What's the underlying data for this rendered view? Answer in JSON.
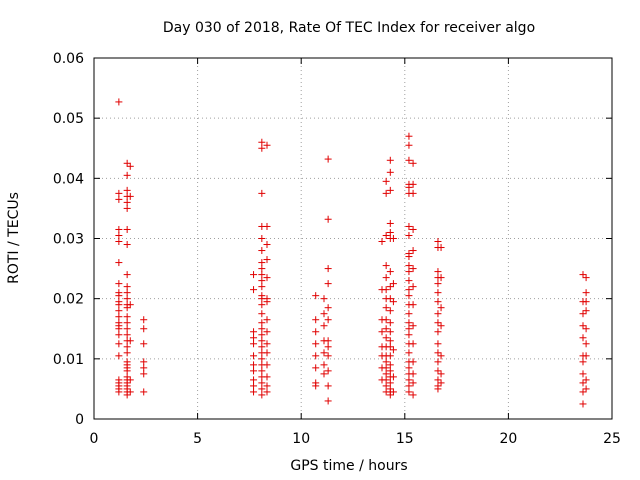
{
  "chart_data": {
    "type": "scatter",
    "title": "Day 030 of 2018, Rate Of TEC Index for receiver algo",
    "xlabel": "GPS time / hours",
    "ylabel": "ROTI / TECUs",
    "xlim": [
      0,
      25
    ],
    "ylim": [
      0,
      0.06
    ],
    "xticks": [
      "0",
      "5",
      "10",
      "15",
      "20",
      "25"
    ],
    "yticks": [
      "0",
      "0.01",
      "0.02",
      "0.03",
      "0.04",
      "0.05",
      "0.06"
    ],
    "grid": true,
    "marker": "plus",
    "color": "#e00000",
    "series": [
      {
        "points": [
          [
            1.2,
            0.0527
          ],
          [
            1.2,
            0.0375
          ],
          [
            1.2,
            0.0365
          ],
          [
            1.2,
            0.0315
          ],
          [
            1.2,
            0.0305
          ],
          [
            1.2,
            0.0295
          ],
          [
            1.2,
            0.026
          ],
          [
            1.2,
            0.0225
          ],
          [
            1.2,
            0.021
          ],
          [
            1.2,
            0.0205
          ],
          [
            1.2,
            0.0195
          ],
          [
            1.2,
            0.019
          ],
          [
            1.2,
            0.018
          ],
          [
            1.2,
            0.017
          ],
          [
            1.2,
            0.016
          ],
          [
            1.2,
            0.0155
          ],
          [
            1.2,
            0.015
          ],
          [
            1.2,
            0.014
          ],
          [
            1.2,
            0.0125
          ],
          [
            1.2,
            0.0105
          ],
          [
            1.2,
            0.0065
          ],
          [
            1.2,
            0.006
          ],
          [
            1.2,
            0.0055
          ],
          [
            1.2,
            0.005
          ],
          [
            1.2,
            0.0045
          ],
          [
            1.6,
            0.0425
          ],
          [
            1.6,
            0.0405
          ],
          [
            1.6,
            0.038
          ],
          [
            1.6,
            0.037
          ],
          [
            1.6,
            0.036
          ],
          [
            1.6,
            0.035
          ],
          [
            1.6,
            0.0315
          ],
          [
            1.6,
            0.029
          ],
          [
            1.6,
            0.024
          ],
          [
            1.6,
            0.022
          ],
          [
            1.6,
            0.021
          ],
          [
            1.6,
            0.02
          ],
          [
            1.6,
            0.019
          ],
          [
            1.6,
            0.0185
          ],
          [
            1.6,
            0.017
          ],
          [
            1.6,
            0.016
          ],
          [
            1.6,
            0.015
          ],
          [
            1.6,
            0.014
          ],
          [
            1.6,
            0.013
          ],
          [
            1.6,
            0.012
          ],
          [
            1.6,
            0.011
          ],
          [
            1.6,
            0.0095
          ],
          [
            1.6,
            0.009
          ],
          [
            1.6,
            0.0085
          ],
          [
            1.6,
            0.008
          ],
          [
            1.6,
            0.007
          ],
          [
            1.6,
            0.0065
          ],
          [
            1.6,
            0.006
          ],
          [
            1.6,
            0.0055
          ],
          [
            1.6,
            0.005
          ],
          [
            1.6,
            0.0045
          ],
          [
            1.6,
            0.004
          ],
          [
            1.75,
            0.042
          ],
          [
            1.75,
            0.037
          ],
          [
            1.75,
            0.019
          ],
          [
            1.75,
            0.013
          ],
          [
            1.75,
            0.0065
          ],
          [
            1.75,
            0.0045
          ],
          [
            2.4,
            0.0165
          ],
          [
            2.4,
            0.015
          ],
          [
            2.4,
            0.0125
          ],
          [
            2.4,
            0.0095
          ],
          [
            2.4,
            0.0085
          ],
          [
            2.4,
            0.0075
          ],
          [
            2.4,
            0.0045
          ],
          [
            7.7,
            0.024
          ],
          [
            7.7,
            0.0215
          ],
          [
            7.7,
            0.0145
          ],
          [
            7.7,
            0.0135
          ],
          [
            7.7,
            0.0125
          ],
          [
            7.7,
            0.0105
          ],
          [
            7.7,
            0.009
          ],
          [
            7.7,
            0.008
          ],
          [
            7.7,
            0.0065
          ],
          [
            7.7,
            0.0055
          ],
          [
            7.7,
            0.0045
          ],
          [
            8.1,
            0.046
          ],
          [
            8.1,
            0.045
          ],
          [
            8.1,
            0.0375
          ],
          [
            8.1,
            0.032
          ],
          [
            8.1,
            0.03
          ],
          [
            8.1,
            0.028
          ],
          [
            8.1,
            0.026
          ],
          [
            8.1,
            0.025
          ],
          [
            8.1,
            0.024
          ],
          [
            8.1,
            0.023
          ],
          [
            8.1,
            0.022
          ],
          [
            8.1,
            0.0205
          ],
          [
            8.1,
            0.02
          ],
          [
            8.1,
            0.019
          ],
          [
            8.1,
            0.0175
          ],
          [
            8.1,
            0.016
          ],
          [
            8.1,
            0.015
          ],
          [
            8.1,
            0.014
          ],
          [
            8.1,
            0.013
          ],
          [
            8.1,
            0.012
          ],
          [
            8.1,
            0.011
          ],
          [
            8.1,
            0.01
          ],
          [
            8.1,
            0.009
          ],
          [
            8.1,
            0.008
          ],
          [
            8.1,
            0.007
          ],
          [
            8.1,
            0.006
          ],
          [
            8.1,
            0.005
          ],
          [
            8.1,
            0.004
          ],
          [
            8.35,
            0.0455
          ],
          [
            8.35,
            0.032
          ],
          [
            8.35,
            0.029
          ],
          [
            8.35,
            0.0265
          ],
          [
            8.35,
            0.0235
          ],
          [
            8.35,
            0.02
          ],
          [
            8.35,
            0.0195
          ],
          [
            8.35,
            0.0165
          ],
          [
            8.35,
            0.0145
          ],
          [
            8.35,
            0.0125
          ],
          [
            8.35,
            0.011
          ],
          [
            8.35,
            0.009
          ],
          [
            8.35,
            0.007
          ],
          [
            8.35,
            0.0055
          ],
          [
            8.35,
            0.0045
          ],
          [
            10.7,
            0.0205
          ],
          [
            10.7,
            0.0165
          ],
          [
            10.7,
            0.0145
          ],
          [
            10.7,
            0.0125
          ],
          [
            10.7,
            0.0105
          ],
          [
            10.7,
            0.0085
          ],
          [
            10.7,
            0.006
          ],
          [
            10.7,
            0.0055
          ],
          [
            11.1,
            0.02
          ],
          [
            11.1,
            0.0175
          ],
          [
            11.1,
            0.0155
          ],
          [
            11.1,
            0.013
          ],
          [
            11.1,
            0.011
          ],
          [
            11.1,
            0.009
          ],
          [
            11.1,
            0.0075
          ],
          [
            11.3,
            0.0432
          ],
          [
            11.3,
            0.0332
          ],
          [
            11.3,
            0.025
          ],
          [
            11.3,
            0.0225
          ],
          [
            11.3,
            0.0185
          ],
          [
            11.3,
            0.0165
          ],
          [
            11.3,
            0.013
          ],
          [
            11.3,
            0.012
          ],
          [
            11.3,
            0.0105
          ],
          [
            11.3,
            0.008
          ],
          [
            11.3,
            0.0055
          ],
          [
            11.3,
            0.003
          ],
          [
            13.9,
            0.0295
          ],
          [
            13.9,
            0.0215
          ],
          [
            13.9,
            0.0165
          ],
          [
            13.9,
            0.0145
          ],
          [
            13.9,
            0.012
          ],
          [
            13.9,
            0.0105
          ],
          [
            13.9,
            0.0085
          ],
          [
            13.9,
            0.0065
          ],
          [
            14.1,
            0.0395
          ],
          [
            14.1,
            0.0375
          ],
          [
            14.1,
            0.0305
          ],
          [
            14.1,
            0.0255
          ],
          [
            14.1,
            0.0235
          ],
          [
            14.1,
            0.0215
          ],
          [
            14.1,
            0.02
          ],
          [
            14.1,
            0.0185
          ],
          [
            14.1,
            0.0165
          ],
          [
            14.1,
            0.015
          ],
          [
            14.1,
            0.0135
          ],
          [
            14.1,
            0.012
          ],
          [
            14.1,
            0.0105
          ],
          [
            14.1,
            0.0095
          ],
          [
            14.1,
            0.0085
          ],
          [
            14.1,
            0.0075
          ],
          [
            14.1,
            0.0065
          ],
          [
            14.1,
            0.0055
          ],
          [
            14.1,
            0.0045
          ],
          [
            14.3,
            0.043
          ],
          [
            14.3,
            0.041
          ],
          [
            14.3,
            0.038
          ],
          [
            14.3,
            0.0325
          ],
          [
            14.3,
            0.031
          ],
          [
            14.3,
            0.03
          ],
          [
            14.3,
            0.0245
          ],
          [
            14.3,
            0.022
          ],
          [
            14.3,
            0.02
          ],
          [
            14.3,
            0.018
          ],
          [
            14.3,
            0.016
          ],
          [
            14.3,
            0.0145
          ],
          [
            14.3,
            0.013
          ],
          [
            14.3,
            0.012
          ],
          [
            14.3,
            0.0105
          ],
          [
            14.3,
            0.009
          ],
          [
            14.3,
            0.008
          ],
          [
            14.3,
            0.007
          ],
          [
            14.3,
            0.006
          ],
          [
            14.3,
            0.005
          ],
          [
            14.3,
            0.0045
          ],
          [
            14.3,
            0.004
          ],
          [
            14.45,
            0.03
          ],
          [
            14.45,
            0.0225
          ],
          [
            14.45,
            0.0195
          ],
          [
            14.45,
            0.0115
          ],
          [
            14.45,
            0.007
          ],
          [
            14.45,
            0.0045
          ],
          [
            15.2,
            0.047
          ],
          [
            15.2,
            0.0455
          ],
          [
            15.2,
            0.043
          ],
          [
            15.2,
            0.039
          ],
          [
            15.2,
            0.0385
          ],
          [
            15.2,
            0.0375
          ],
          [
            15.2,
            0.032
          ],
          [
            15.2,
            0.0305
          ],
          [
            15.2,
            0.0275
          ],
          [
            15.2,
            0.027
          ],
          [
            15.2,
            0.0255
          ],
          [
            15.2,
            0.0245
          ],
          [
            15.2,
            0.023
          ],
          [
            15.2,
            0.0215
          ],
          [
            15.2,
            0.0205
          ],
          [
            15.2,
            0.019
          ],
          [
            15.2,
            0.0175
          ],
          [
            15.2,
            0.016
          ],
          [
            15.2,
            0.015
          ],
          [
            15.2,
            0.014
          ],
          [
            15.2,
            0.0125
          ],
          [
            15.2,
            0.011
          ],
          [
            15.2,
            0.0095
          ],
          [
            15.2,
            0.0085
          ],
          [
            15.2,
            0.0075
          ],
          [
            15.2,
            0.0065
          ],
          [
            15.2,
            0.0055
          ],
          [
            15.2,
            0.0045
          ],
          [
            15.4,
            0.0425
          ],
          [
            15.4,
            0.039
          ],
          [
            15.4,
            0.0375
          ],
          [
            15.4,
            0.0315
          ],
          [
            15.4,
            0.028
          ],
          [
            15.4,
            0.025
          ],
          [
            15.4,
            0.022
          ],
          [
            15.4,
            0.019
          ],
          [
            15.4,
            0.0155
          ],
          [
            15.4,
            0.0125
          ],
          [
            15.4,
            0.0095
          ],
          [
            15.4,
            0.0075
          ],
          [
            15.4,
            0.006
          ],
          [
            15.4,
            0.004
          ],
          [
            16.6,
            0.0295
          ],
          [
            16.6,
            0.0285
          ],
          [
            16.6,
            0.0245
          ],
          [
            16.6,
            0.0235
          ],
          [
            16.6,
            0.0225
          ],
          [
            16.6,
            0.021
          ],
          [
            16.6,
            0.0195
          ],
          [
            16.6,
            0.0175
          ],
          [
            16.6,
            0.016
          ],
          [
            16.6,
            0.0145
          ],
          [
            16.6,
            0.0125
          ],
          [
            16.6,
            0.011
          ],
          [
            16.6,
            0.0095
          ],
          [
            16.6,
            0.008
          ],
          [
            16.6,
            0.0065
          ],
          [
            16.6,
            0.0055
          ],
          [
            16.6,
            0.005
          ],
          [
            16.75,
            0.0285
          ],
          [
            16.75,
            0.0235
          ],
          [
            16.75,
            0.0185
          ],
          [
            16.75,
            0.0155
          ],
          [
            16.75,
            0.0105
          ],
          [
            16.75,
            0.0075
          ],
          [
            16.75,
            0.006
          ],
          [
            23.6,
            0.024
          ],
          [
            23.6,
            0.0195
          ],
          [
            23.6,
            0.0175
          ],
          [
            23.6,
            0.0155
          ],
          [
            23.6,
            0.0135
          ],
          [
            23.6,
            0.0105
          ],
          [
            23.6,
            0.0095
          ],
          [
            23.6,
            0.0075
          ],
          [
            23.6,
            0.006
          ],
          [
            23.6,
            0.0045
          ],
          [
            23.6,
            0.0025
          ],
          [
            23.75,
            0.0235
          ],
          [
            23.75,
            0.021
          ],
          [
            23.75,
            0.0195
          ],
          [
            23.75,
            0.018
          ],
          [
            23.75,
            0.015
          ],
          [
            23.75,
            0.0125
          ],
          [
            23.75,
            0.0105
          ],
          [
            23.75,
            0.0065
          ],
          [
            23.75,
            0.005
          ]
        ]
      }
    ]
  }
}
